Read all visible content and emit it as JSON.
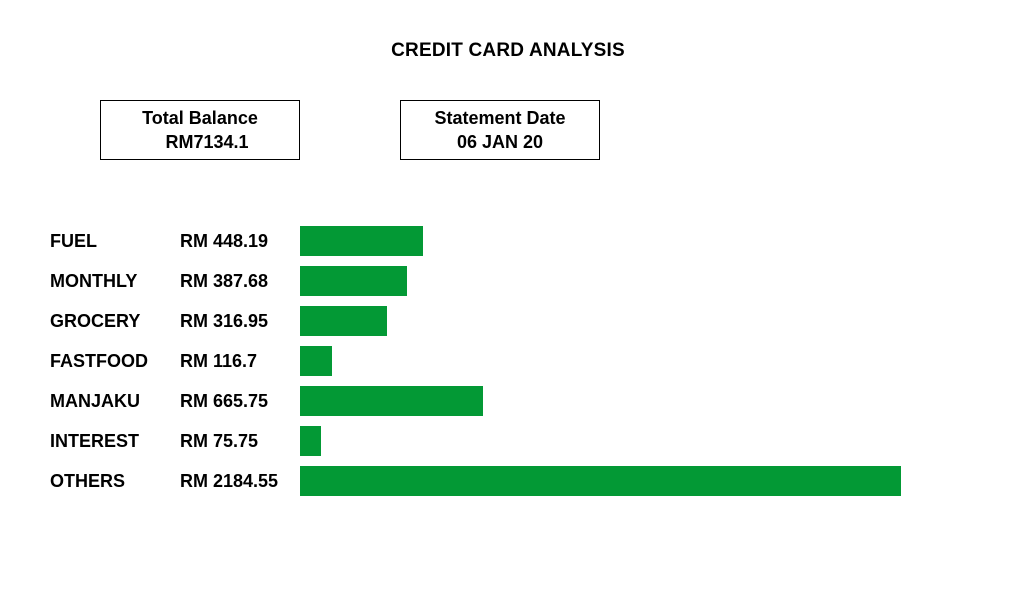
{
  "title": "CREDIT CARD ANALYSIS",
  "summary": {
    "total_balance_label": "Total Balance",
    "total_balance_value": "RM7134.1",
    "statement_date_label": "Statement Date",
    "statement_date_value": "06 JAN 20"
  },
  "colors": {
    "bar": "#039935"
  },
  "chart_data": {
    "type": "bar",
    "orientation": "horizontal",
    "title": "",
    "xlabel": "",
    "ylabel": "",
    "categories": [
      "FUEL",
      "MONTHLY",
      "GROCERY",
      "FASTFOOD",
      "MANJAKU",
      "INTEREST",
      "OTHERS"
    ],
    "values": [
      448.19,
      387.68,
      316.95,
      116.7,
      665.75,
      75.75,
      2184.55
    ],
    "value_labels": [
      "RM 448.19",
      "RM 387.68",
      "RM 316.95",
      "RM 116.7",
      "RM 665.75",
      "RM 75.75",
      "RM 2184.55"
    ],
    "grid": false,
    "legend": "none"
  }
}
